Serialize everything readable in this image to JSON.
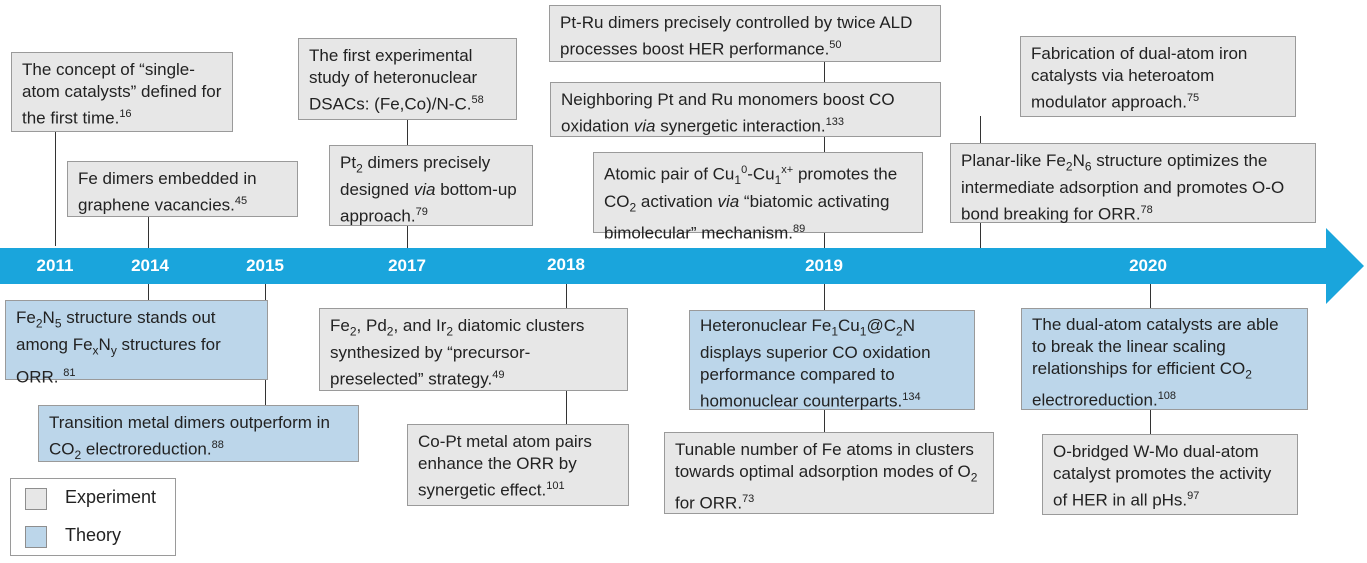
{
  "colors": {
    "arrow": "#1aa5dc",
    "experiment_fill": "#e7e7e7",
    "theory_fill": "#bcd6ea",
    "year_text": "#ffffff"
  },
  "years": [
    "2011",
    "2014",
    "2015",
    "2017",
    "2018",
    "2019",
    "2020"
  ],
  "legend": {
    "experiment": "Experiment",
    "theory": "Theory"
  },
  "events": {
    "single_atom_2011": {
      "type": "Experiment",
      "p1": "The concept of “single-atom catalysts” defined for the first time.",
      "ref": "16"
    },
    "fe_dimers_2014": {
      "type": "Experiment",
      "p1": "Fe dimers embedded in graphene vacancies.",
      "ref": "45"
    },
    "fe2n5_2014": {
      "type": "Theory",
      "fe": "Fe",
      "s2": "2",
      "n": "N",
      "s5": "5",
      "p2": " structure stands out among Fe",
      "x": "x",
      "ny": "N",
      "y": "y",
      "p3": " structures for ORR. ",
      "ref": "81"
    },
    "transition_2015": {
      "type": "Theory",
      "p1": "Transition metal dimers outperform in CO",
      "sub": "2",
      "p2": " electroreduction.",
      "ref": "88"
    },
    "dsacs_2017": {
      "type": "Experiment",
      "p1": "The first experimental study of heteronuclear DSACs: (Fe,Co)/N-C.",
      "ref": "58"
    },
    "pt2_2017": {
      "type": "Experiment",
      "p1": "Pt",
      "sub": "2",
      "p2": " dimers precisely designed ",
      "via": "via",
      "p3": " bottom-up approach.",
      "ref": "79"
    },
    "fe2pd2_2018": {
      "type": "Experiment",
      "p1": "Fe",
      "s1": "2",
      "p2": ", Pd",
      "s2": "2",
      "p3": ", and Ir",
      "s3": "2",
      "p4": " diatomic clusters synthesized by “precursor-preselected” strategy.",
      "ref": "49"
    },
    "copt_2018": {
      "type": "Experiment",
      "p1": "Co-Pt metal atom pairs enhance the ORR by synergetic effect.",
      "ref": "101"
    },
    "ptru_ald_2019": {
      "type": "Experiment",
      "p1": "Pt-Ru dimers precisely controlled by twice ALD processes boost HER performance.",
      "ref": "50"
    },
    "ptru_co_2019": {
      "type": "Experiment",
      "p1": "Neighboring Pt and Ru monomers boost CO oxidation ",
      "via": "via",
      "p2": " synergetic interaction.",
      "ref": "133"
    },
    "cu_pair_2019": {
      "type": "Experiment",
      "p1": "Atomic pair of Cu",
      "s1": "1",
      "sup0": "0",
      "p2": "-Cu",
      "s2": "1",
      "supx": "x+",
      "p3": " promotes the CO",
      "s3": "2",
      "p4": " activation ",
      "via": "via",
      "p5": " “biatomic activating bimolecular” mechanism.",
      "ref": "89"
    },
    "fecu_2019": {
      "type": "Theory",
      "p1": "Heteronuclear Fe",
      "s1": "1",
      "p2": "Cu",
      "s2": "1",
      "p3": "@C",
      "s3": "2",
      "p4": "N displays superior CO oxidation performance compared to homonuclear counterparts.",
      "ref": "134"
    },
    "tunable_2019": {
      "type": "Experiment",
      "p1": "Tunable number of  Fe atoms in clusters towards optimal adsorption modes of O",
      "sub": "2",
      "p2": " for ORR.",
      "ref": "73"
    },
    "dual_iron_2020": {
      "type": "Experiment",
      "p1": "Fabrication of dual-atom iron catalysts via heteroatom modulator approach.",
      "ref": "75"
    },
    "fe2n6_2020": {
      "type": "Experiment",
      "p1": "Planar-like Fe",
      "s1": "2",
      "p2": "N",
      "s2": "6",
      "p3": " structure optimizes the intermediate adsorption and promotes O-O bond breaking for ORR.",
      "ref": "78"
    },
    "linear_2020": {
      "type": "Theory",
      "p1": "The dual-atom catalysts are able to break the linear scaling relationships for efficient CO",
      "sub": "2",
      "p2": " electroreduction.",
      "ref": "108"
    },
    "wmo_2020": {
      "type": "Experiment",
      "p1": "O-bridged W-Mo dual-atom catalyst promotes the activity of HER in all pHs.",
      "ref": "97"
    }
  }
}
